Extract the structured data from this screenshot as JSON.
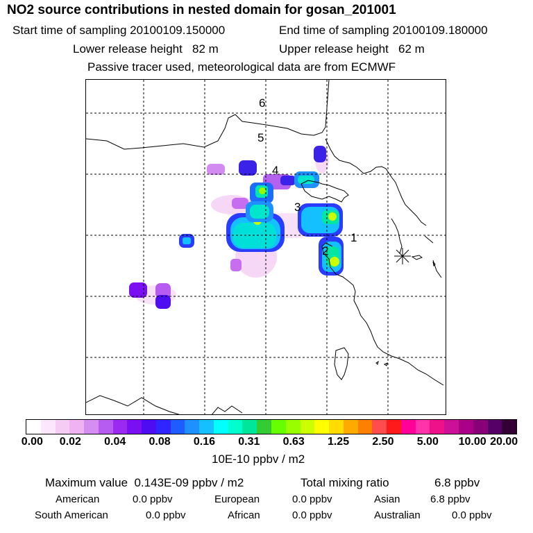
{
  "header": {
    "title": "NO2 source contributions in nested domain for gosan_201001",
    "start_label": "Start time of sampling 20100109.150000",
    "end_label": "End time of sampling 20100109.180000",
    "lower_label": "Lower release height   82 m",
    "upper_label": "Upper release height   62 m",
    "tracer_label": "Passive tracer used, meteorological data are from ECMWF"
  },
  "map": {
    "trajectory_labels": [
      "6",
      "5",
      "4",
      "3",
      "2",
      "1"
    ],
    "receptor_marker": "star-icon"
  },
  "colorbar": {
    "colors": [
      "#ffffff",
      "#fbe6fb",
      "#f4ccf4",
      "#eeb3f0",
      "#d48ef2",
      "#b75cf0",
      "#9a2af0",
      "#7a0ff2",
      "#4d0cf2",
      "#2f25ff",
      "#1f5cff",
      "#1f90ff",
      "#14c0ff",
      "#00ffff",
      "#00ffcc",
      "#00e69a",
      "#33cc33",
      "#66ff00",
      "#99ff00",
      "#ccff00",
      "#ffff00",
      "#ffdd00",
      "#ffaa00",
      "#ff8000",
      "#ff4d4d",
      "#ff1a1a",
      "#ff0099",
      "#ff33aa",
      "#ee1188",
      "#cc1199",
      "#aa0088",
      "#880077",
      "#550066",
      "#330033"
    ],
    "ticks": [
      "0.00",
      "0.02",
      "0.04",
      "0.08",
      "0.16",
      "0.31",
      "0.63",
      "1.25",
      "2.50",
      "5.00",
      "10.00",
      "20.00"
    ],
    "unit": "10E-10 ppbv / m2"
  },
  "stats": {
    "max_label": "Maximum value  0.143E-09 ppbv / m2",
    "total_label": "Total mixing ratio",
    "total_value": "6.8 ppbv",
    "regions": [
      {
        "name": "American",
        "value": "0.0 ppbv"
      },
      {
        "name": "European",
        "value": "0.0 ppbv"
      },
      {
        "name": "Asian",
        "value": "6.8 ppbv"
      },
      {
        "name": "South American",
        "value": "0.0 ppbv"
      },
      {
        "name": "African",
        "value": "0.0 ppbv"
      },
      {
        "name": "Australian",
        "value": "0.0 ppbv"
      }
    ]
  }
}
